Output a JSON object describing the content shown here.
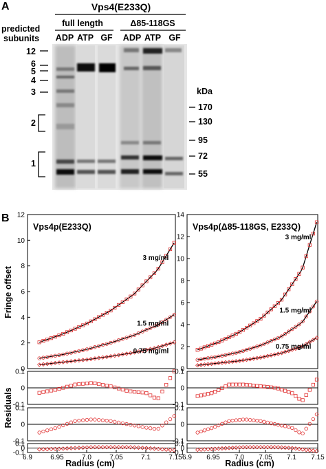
{
  "panel_a": {
    "label": "A",
    "construct": "Vps4(E233Q)",
    "group_full": "full length",
    "group_delta": "Δ85-118GS",
    "lanes": [
      "ADP",
      "ATP",
      "GF",
      "ADP",
      "ATP",
      "GF"
    ],
    "subunits_label_line1": "predicted",
    "subunits_label_line2": "subunits",
    "subunit_markers": [
      "12",
      "6",
      "5",
      "4",
      "3",
      "2",
      "1"
    ],
    "kda_label": "kDa",
    "mw_markers": [
      "170",
      "130",
      "95",
      "72",
      "55"
    ]
  },
  "panel_b": {
    "label": "B",
    "y_axis_title": "Fringe offset",
    "residuals_title": "Residuals",
    "x_axis_title": "Radius (cm)"
  },
  "chart_data": [
    {
      "type": "scatter",
      "title": "Vps4p(E233Q)",
      "xlabel": "Radius (cm)",
      "ylabel": "Fringe offset",
      "xlim": [
        6.9,
        7.15
      ],
      "ylim": [
        0,
        12
      ],
      "xticks": [
        "6.9",
        "6.95",
        "7.0",
        "7.05",
        "7.1",
        "7.15"
      ],
      "yticks": [
        "0",
        "2",
        "4",
        "6",
        "8",
        "10",
        "12"
      ],
      "series": [
        {
          "name": "3 mg/ml",
          "x": [
            6.92,
            6.96,
            7.0,
            7.04,
            7.08,
            7.12,
            7.148
          ],
          "values": [
            2.05,
            2.7,
            3.5,
            4.5,
            5.8,
            7.7,
            9.8
          ]
        },
        {
          "name": "1.5 mg/ml",
          "x": [
            6.92,
            6.96,
            7.0,
            7.04,
            7.08,
            7.12,
            7.148
          ],
          "values": [
            0.8,
            1.1,
            1.5,
            2.0,
            2.6,
            3.4,
            4.2
          ]
        },
        {
          "name": "0.75 mg/ml",
          "x": [
            6.92,
            6.96,
            7.0,
            7.04,
            7.08,
            7.12,
            7.148
          ],
          "values": [
            0.3,
            0.5,
            0.7,
            0.95,
            1.25,
            1.65,
            2.05
          ]
        }
      ],
      "residuals": [
        {
          "ylim": [
            -0.1,
            0.1
          ],
          "yticks": [
            "-0.1",
            "0",
            "0.1"
          ],
          "x": [
            6.92,
            6.95,
            6.98,
            7.01,
            7.04,
            7.07,
            7.1,
            7.12,
            7.148
          ],
          "values": [
            -0.03,
            -0.01,
            0.02,
            0.03,
            0.01,
            -0.02,
            -0.03,
            -0.07,
            0.1
          ]
        },
        {
          "ylim": [
            -0.1,
            0.1
          ],
          "yticks": [
            "-0.1",
            "0",
            "0.1"
          ],
          "x": [
            6.92,
            6.95,
            6.98,
            7.01,
            7.04,
            7.07,
            7.1,
            7.12,
            7.148
          ],
          "values": [
            -0.05,
            -0.02,
            0.02,
            0.03,
            0.02,
            0.0,
            -0.02,
            -0.03,
            0.05
          ]
        },
        {
          "ylim": [
            -0.1,
            0.1
          ],
          "yticks": [
            "-0.1",
            "0",
            "0.1"
          ],
          "x": [
            6.92,
            6.95,
            6.98,
            7.01,
            7.04,
            7.07,
            7.1,
            7.12,
            7.148
          ],
          "values": [
            -0.03,
            -0.02,
            0.0,
            0.02,
            0.02,
            0.02,
            0.0,
            -0.02,
            -0.05
          ]
        }
      ]
    },
    {
      "type": "scatter",
      "title": "Vps4p(Δ85-118GS, E233Q)",
      "xlabel": "Radius (cm)",
      "ylabel": "Fringe offset",
      "xlim": [
        6.9,
        7.15
      ],
      "ylim": [
        0,
        14
      ],
      "xticks": [
        "6.9",
        "6.95",
        "7.0",
        "7.05",
        "7.1",
        "7.15"
      ],
      "yticks": [
        "0",
        "2",
        "4",
        "6",
        "8",
        "10",
        "12",
        "14"
      ],
      "series": [
        {
          "name": "3 mg/ml",
          "x": [
            6.92,
            6.96,
            7.0,
            7.04,
            7.08,
            7.12,
            7.148
          ],
          "values": [
            1.7,
            2.4,
            3.3,
            4.5,
            6.2,
            9.0,
            13.3
          ]
        },
        {
          "name": "1.5 mg/ml",
          "x": [
            6.92,
            6.96,
            7.0,
            7.04,
            7.08,
            7.12,
            7.148
          ],
          "values": [
            0.8,
            1.1,
            1.5,
            2.1,
            2.9,
            4.2,
            6.1
          ]
        },
        {
          "name": "0.75 mg/ml",
          "x": [
            6.92,
            6.96,
            7.0,
            7.04,
            7.08,
            7.12,
            7.148
          ],
          "values": [
            0.3,
            0.5,
            0.7,
            1.0,
            1.4,
            2.0,
            2.8
          ]
        }
      ],
      "residuals": [
        {
          "ylim": [
            -0.1,
            0.1
          ],
          "yticks": [
            "-0.1",
            "0",
            "0.1"
          ],
          "x": [
            6.92,
            6.95,
            6.98,
            7.01,
            7.04,
            7.07,
            7.1,
            7.12,
            7.148
          ],
          "values": [
            -0.05,
            -0.03,
            0.02,
            0.02,
            0.01,
            0.0,
            -0.03,
            -0.08,
            0.05
          ]
        },
        {
          "ylim": [
            -0.1,
            0.1
          ],
          "yticks": [
            "-0.1",
            "0",
            "0.1"
          ],
          "x": [
            6.92,
            6.95,
            6.98,
            7.01,
            7.04,
            7.07,
            7.1,
            7.12,
            7.148
          ],
          "values": [
            -0.05,
            -0.02,
            0.02,
            0.03,
            0.02,
            0.0,
            -0.02,
            -0.06,
            0.06
          ]
        },
        {
          "ylim": [
            -0.1,
            0.1
          ],
          "yticks": [
            "-0.1",
            "0",
            "0.1"
          ],
          "x": [
            6.92,
            6.95,
            6.98,
            7.01,
            7.04,
            7.07,
            7.1,
            7.12,
            7.148
          ],
          "values": [
            -0.04,
            -0.02,
            0.0,
            0.02,
            0.02,
            0.02,
            0.0,
            -0.03,
            -0.07
          ]
        }
      ]
    }
  ],
  "colors": {
    "marker": "#e03030",
    "fit": "#000000"
  }
}
